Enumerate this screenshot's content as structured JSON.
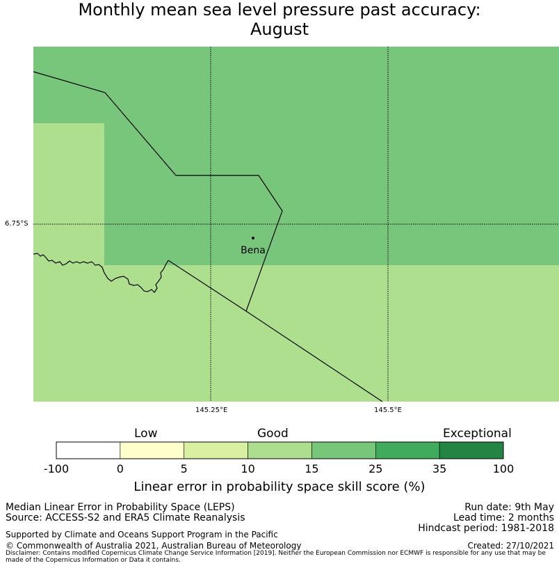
{
  "title": {
    "line1": "Monthly mean sea level pressure past accuracy:",
    "line2": "August"
  },
  "map": {
    "place_label": "Bena",
    "lat_label": "6.75°S",
    "lon_labels": [
      "145.25°E",
      "145.5°E"
    ],
    "colors": {
      "good_zone": "#addf8e",
      "high_zone": "#78c67c",
      "line": "#000000"
    }
  },
  "colorbar": {
    "category_labels": [
      "Low",
      "Good",
      "Exceptional"
    ],
    "ticks": [
      "-100",
      "0",
      "5",
      "10",
      "15",
      "25",
      "35",
      "100"
    ],
    "colors": [
      "#ffffff",
      "#ffffcc",
      "#d9f0a3",
      "#addd8e",
      "#78c679",
      "#41ab5d",
      "#238443"
    ],
    "title": "Linear error in probability space skill score (%)"
  },
  "footer": {
    "left1": "Median Linear Error in Probability Space (LEPS)",
    "left2": "Source: ACCESS-S2 and ERA5 Climate Reanalysis",
    "right1": "Run date: 9th May",
    "right2": "Lead time: 2 months",
    "right3": "Hindcast period: 1981-2018",
    "support": "Supported by Climate and Oceans Support Program in the Pacific",
    "copyright": "© Commonwealth of Australia 2021, Australian Bureau of Meteorology",
    "created": "Created: 27/10/2021",
    "disclaimer": "Disclaimer: Contains modified Copernicus Climate Change Service Information [2019]. Neither the European Commission nor ECMWF is responsible for any use that may be made of the Copernicus Information or Data it contains."
  }
}
